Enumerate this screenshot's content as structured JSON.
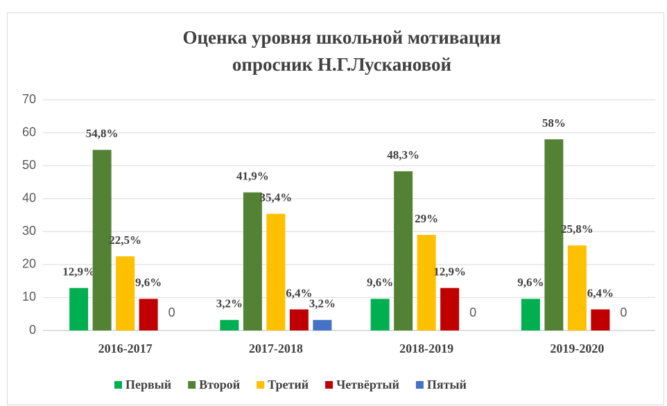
{
  "chart_data": {
    "type": "bar",
    "title": "Оценка уровня школьной мотивации",
    "subtitle": "опросник Н.Г.Лускановой",
    "categories": [
      "2016-2017",
      "2017-2018",
      "2018-2019",
      "2019-2020"
    ],
    "series": [
      {
        "name": "Первый",
        "color": "#00b050",
        "values": [
          12.9,
          3.2,
          9.6,
          9.6
        ],
        "value_labels": [
          "12,9%",
          "3,2%",
          "9,6%",
          "9,6%"
        ]
      },
      {
        "name": "Второй",
        "color": "#548235",
        "values": [
          54.8,
          41.9,
          48.3,
          58
        ],
        "value_labels": [
          "54,8%",
          "41,9%",
          "48,3%",
          "58%"
        ]
      },
      {
        "name": "Третий",
        "color": "#ffc000",
        "values": [
          22.5,
          35.4,
          29,
          25.8
        ],
        "value_labels": [
          "22,5%",
          "35,4%",
          "29%",
          "25,8%"
        ]
      },
      {
        "name": "Четвёртый",
        "color": "#c00000",
        "values": [
          9.6,
          6.4,
          12.9,
          6.4
        ],
        "value_labels": [
          "9,6%",
          "6,4%",
          "12,9%",
          "6,4%"
        ]
      },
      {
        "name": "Пятый",
        "color": "#4472c4",
        "values": [
          0,
          3.2,
          0,
          0
        ],
        "value_labels": [
          "0",
          "3,2%",
          "0",
          "0"
        ]
      }
    ],
    "ylim": [
      0,
      70
    ],
    "yticks": [
      0,
      10,
      20,
      30,
      40,
      50,
      60,
      70
    ],
    "grid": true,
    "legend": "bottom"
  }
}
